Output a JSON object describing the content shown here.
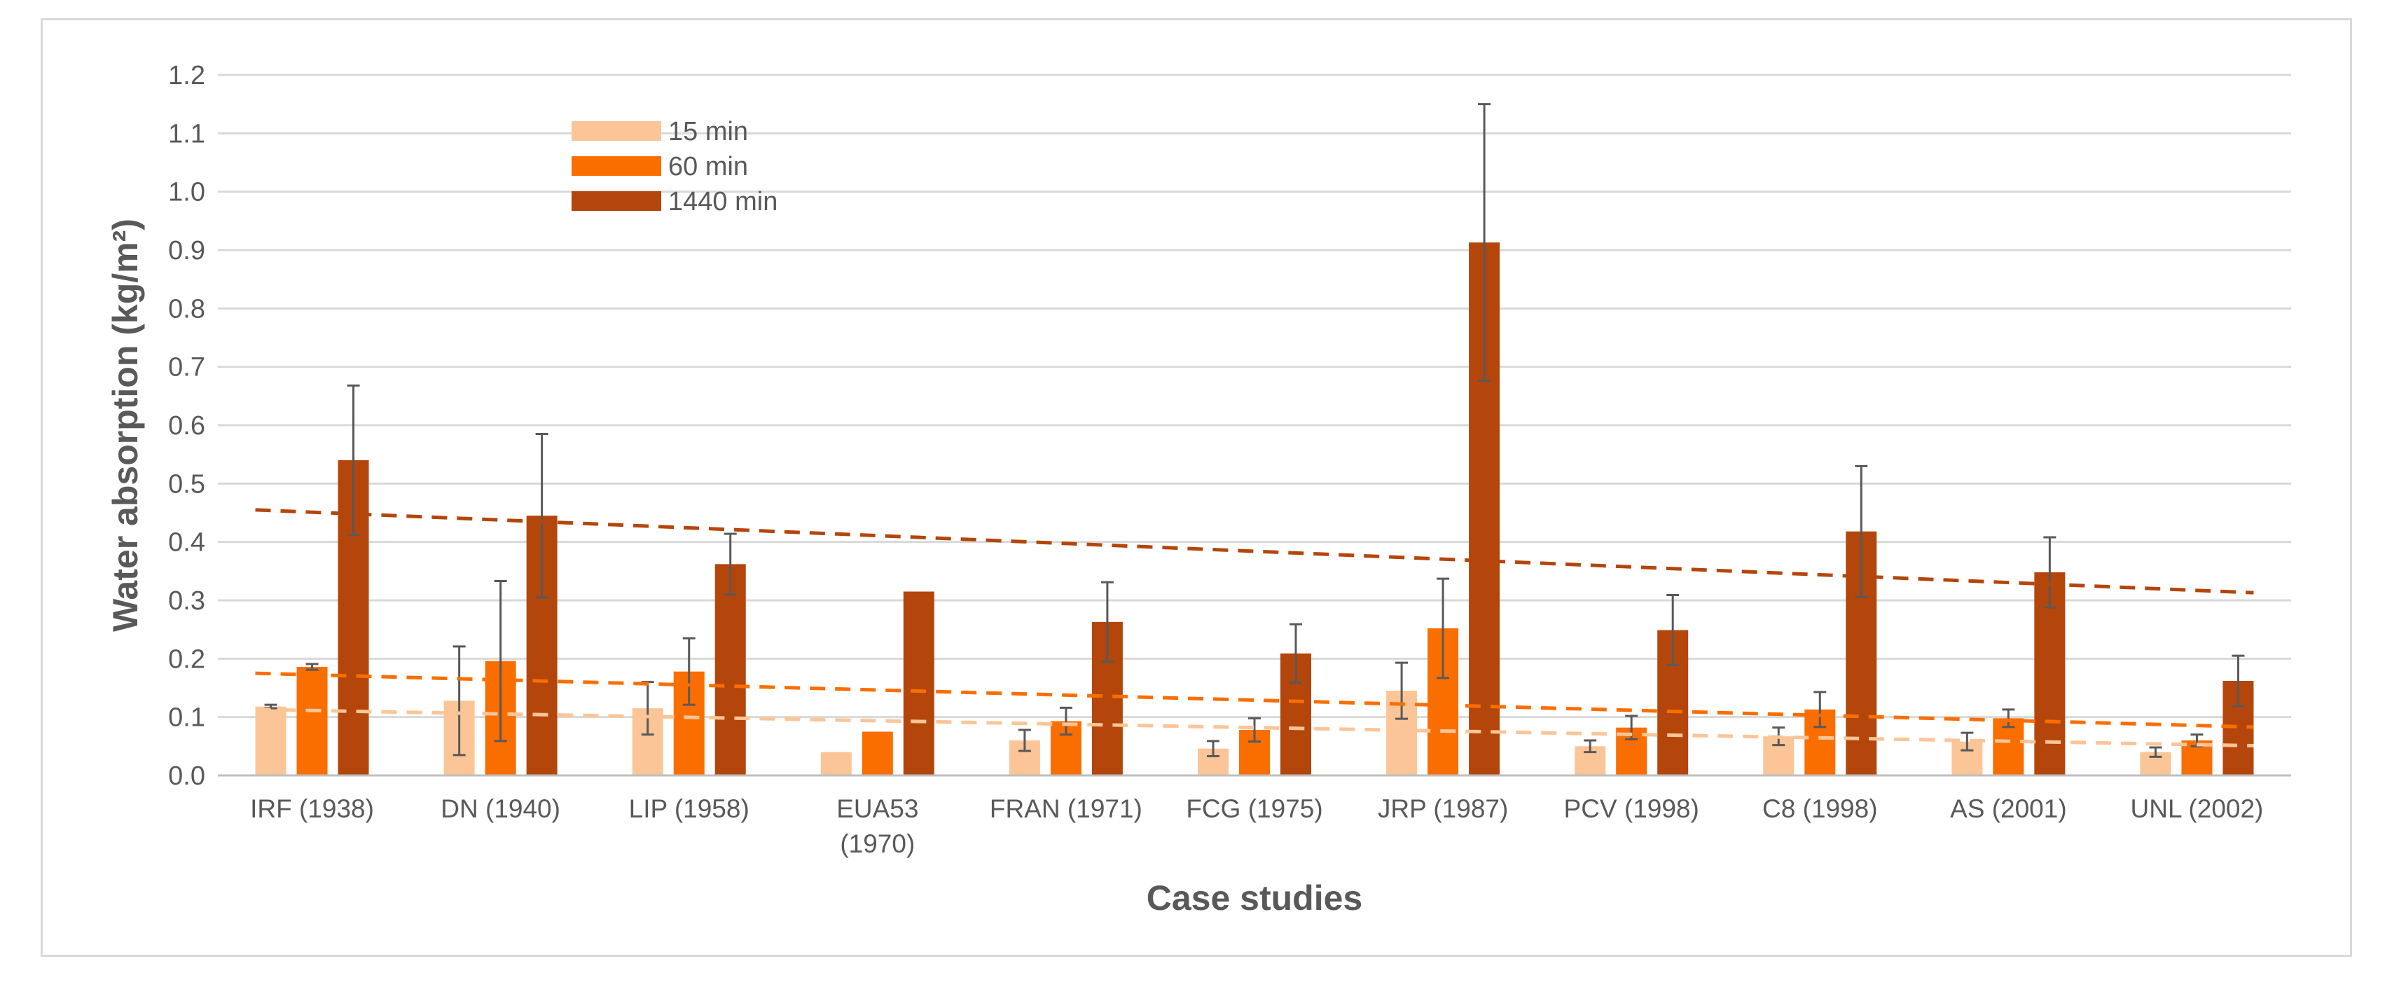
{
  "chart_data": {
    "type": "bar",
    "title": "",
    "xlabel": "Case studies",
    "ylabel": "Water absorption (kg/m²)",
    "ylim": [
      0,
      1.2
    ],
    "ytick_step": 0.1,
    "yticks": [
      "0.0",
      "0.1",
      "0.2",
      "0.3",
      "0.4",
      "0.5",
      "0.6",
      "0.7",
      "0.8",
      "0.9",
      "1.0",
      "1.1",
      "1.2"
    ],
    "grid": true,
    "legend_position": "top-left",
    "categories": [
      {
        "line1": "IRF (1938)",
        "line2": ""
      },
      {
        "line1": "DN (1940)",
        "line2": ""
      },
      {
        "line1": "LIP (1958)",
        "line2": ""
      },
      {
        "line1": "EUA53",
        "line2": "(1970)"
      },
      {
        "line1": "FRAN (1971)",
        "line2": ""
      },
      {
        "line1": "FCG (1975)",
        "line2": ""
      },
      {
        "line1": "JRP (1987)",
        "line2": ""
      },
      {
        "line1": "PCV (1998)",
        "line2": ""
      },
      {
        "line1": "C8 (1998)",
        "line2": ""
      },
      {
        "line1": "AS (2001)",
        "line2": ""
      },
      {
        "line1": "UNL (2002)",
        "line2": ""
      }
    ],
    "series": [
      {
        "name": "15 min",
        "color": "#fbc597",
        "values": [
          0.118,
          0.128,
          0.115,
          0.04,
          0.06,
          0.046,
          0.145,
          0.05,
          0.067,
          0.058,
          0.04
        ],
        "error": [
          0.003,
          0.093,
          0.045,
          null,
          0.018,
          0.013,
          0.048,
          0.01,
          0.015,
          0.015,
          0.008
        ],
        "trend": [
          0.113,
          0.051
        ]
      },
      {
        "name": "60 min",
        "color": "#fa6e00",
        "values": [
          0.186,
          0.196,
          0.178,
          0.075,
          0.093,
          0.078,
          0.252,
          0.082,
          0.113,
          0.098,
          0.06
        ],
        "error": [
          0.005,
          0.137,
          0.057,
          null,
          0.023,
          0.02,
          0.085,
          0.02,
          0.03,
          0.015,
          0.01
        ],
        "trend": [
          0.175,
          0.083
        ]
      },
      {
        "name": "1440 min",
        "color": "#b4460b",
        "values": [
          0.54,
          0.445,
          0.362,
          0.315,
          0.263,
          0.209,
          0.913,
          0.249,
          0.418,
          0.348,
          0.162
        ],
        "error": [
          0.128,
          0.14,
          0.052,
          null,
          0.068,
          0.05,
          0.237,
          0.06,
          0.112,
          0.06,
          0.043
        ],
        "trend": [
          0.455,
          0.313
        ]
      }
    ]
  }
}
